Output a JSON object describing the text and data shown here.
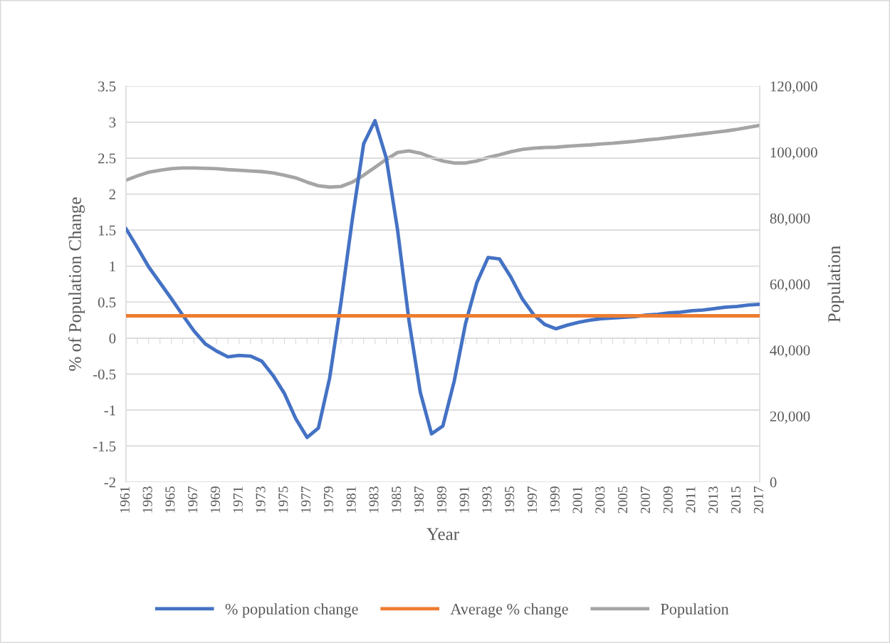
{
  "chart_data": {
    "type": "line",
    "xlabel": "Year",
    "ylabel": "% of Population Change",
    "y2label": "Population",
    "categories": [
      "1961",
      null,
      "1963",
      null,
      "1965",
      null,
      "1967",
      null,
      "1969",
      null,
      "1971",
      null,
      "1973",
      null,
      "1975",
      null,
      "1977",
      null,
      "1979",
      null,
      "1981",
      null,
      "1983",
      null,
      "1985",
      null,
      "1987",
      null,
      "1989",
      null,
      "1991",
      null,
      "1993",
      null,
      "1995",
      null,
      "1997",
      null,
      "1999",
      null,
      "2001",
      null,
      "2003",
      null,
      "2005",
      null,
      "2007",
      null,
      "2009",
      null,
      "2011",
      null,
      "2013",
      null,
      "2015",
      null,
      "2017"
    ],
    "series": [
      {
        "name": "% population change",
        "color": "#4472c4",
        "values": [
          1.52,
          1.26,
          0.99,
          0.77,
          0.55,
          0.32,
          0.1,
          -0.08,
          -0.18,
          -0.26,
          -0.24,
          -0.25,
          -0.32,
          -0.52,
          -0.77,
          -1.12,
          -1.38,
          -1.25,
          -0.55,
          0.5,
          1.65,
          2.7,
          3.02,
          2.5,
          1.5,
          0.25,
          -0.75,
          -1.33,
          -1.22,
          -0.6,
          0.2,
          0.77,
          1.12,
          1.1,
          0.85,
          0.55,
          0.33,
          0.19,
          0.13,
          0.18,
          0.22,
          0.25,
          0.27,
          0.28,
          0.29,
          0.3,
          0.32,
          0.33,
          0.35,
          0.36,
          0.38,
          0.39,
          0.41,
          0.43,
          0.44,
          0.46,
          0.47
        ]
      },
      {
        "name": "Average % change",
        "color": "#ed7d31",
        "values": [
          0.31,
          0.31,
          0.31,
          0.31,
          0.31,
          0.31,
          0.31,
          0.31,
          0.31,
          0.31,
          0.31,
          0.31,
          0.31,
          0.31,
          0.31,
          0.31,
          0.31,
          0.31,
          0.31,
          0.31,
          0.31,
          0.31,
          0.31,
          0.31,
          0.31,
          0.31,
          0.31,
          0.31,
          0.31,
          0.31,
          0.31,
          0.31,
          0.31,
          0.31,
          0.31,
          0.31,
          0.31,
          0.31,
          0.31,
          0.31,
          0.31,
          0.31,
          0.31,
          0.31,
          0.31,
          0.31,
          0.31,
          0.31,
          0.31,
          0.31,
          0.31,
          0.31,
          0.31,
          0.31,
          0.31,
          0.31,
          0.31
        ]
      },
      {
        "name": "Population",
        "color": "#a5a5a5",
        "axis": "y2",
        "values": [
          91500,
          92800,
          93900,
          94500,
          95000,
          95200,
          95200,
          95100,
          95000,
          94700,
          94500,
          94300,
          94100,
          93700,
          93000,
          92200,
          90900,
          89800,
          89400,
          89600,
          90900,
          93000,
          95400,
          97800,
          99900,
          100400,
          99700,
          98400,
          97300,
          96700,
          96700,
          97300,
          98400,
          99200,
          100100,
          100800,
          101200,
          101400,
          101500,
          101800,
          102000,
          102200,
          102500,
          102700,
          103000,
          103300,
          103700,
          104000,
          104400,
          104800,
          105200,
          105600,
          106000,
          106400,
          106900,
          107500,
          108100
        ]
      }
    ],
    "ylim": [
      -2,
      3.5
    ],
    "yticks": [
      -2,
      -1.5,
      -1,
      -0.5,
      0,
      0.5,
      1,
      1.5,
      2,
      2.5,
      3,
      3.5
    ],
    "y2lim": [
      0,
      120000
    ],
    "y2ticks": [
      0,
      {
        "value": 20000,
        "label": "20,000"
      },
      {
        "value": 40000,
        "label": "40,000"
      },
      {
        "value": 60000,
        "label": "60,000"
      },
      {
        "value": 80000,
        "label": "80,000"
      },
      {
        "value": 100000,
        "label": "100,000"
      },
      {
        "value": 120000,
        "label": "120,000"
      }
    ],
    "grid": "y",
    "legend": "bottom",
    "marker": "none",
    "line_style": "solid"
  }
}
